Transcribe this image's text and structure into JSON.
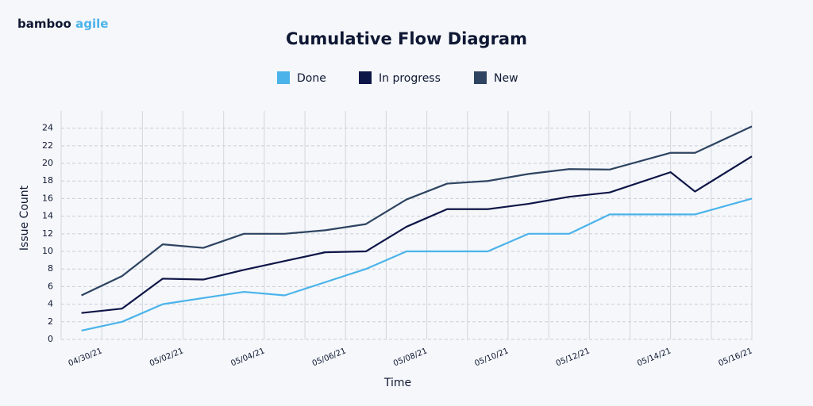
{
  "logo": [
    "bamboo",
    "agile"
  ],
  "chart_data": {
    "type": "line",
    "title": "Cumulative Flow Diagram",
    "x_label": "Time",
    "y_label": "Issue Count",
    "x": [
      -0.5,
      0.5,
      1.5,
      2.5,
      3.5,
      4.5,
      5.5,
      6.5,
      7.5,
      8.5,
      9.5,
      10.5,
      11.5,
      12.5,
      14,
      14.6,
      16
    ],
    "series": [
      {
        "name": "Done",
        "color": "#4bb3ea",
        "values": [
          1,
          2,
          4,
          4.7,
          5.4,
          5,
          6.5,
          8,
          10,
          10,
          10,
          12,
          12,
          14.2,
          14.2,
          14.2,
          16
        ]
      },
      {
        "name": "In progress",
        "color": "#0e1547",
        "values": [
          3,
          3.5,
          6.9,
          6.8,
          7.9,
          8.9,
          9.9,
          10,
          12.8,
          14.8,
          14.8,
          15.4,
          16.2,
          16.7,
          19,
          16.8,
          20.8
        ]
      },
      {
        "name": "New",
        "color": "#2e4461",
        "values": [
          5,
          7.2,
          10.8,
          10.4,
          12,
          12,
          12.4,
          13.1,
          15.9,
          17.7,
          18,
          18.8,
          19.35,
          19.3,
          21.2,
          21.2,
          24.2
        ]
      }
    ],
    "xlim": [
      -1,
      16
    ],
    "xticks": [
      {
        "value": 0,
        "label": "04/30/21"
      },
      {
        "value": 1,
        "label": null
      },
      {
        "value": 2,
        "label": "05/02/21"
      },
      {
        "value": 3,
        "label": null
      },
      {
        "value": 4,
        "label": "05/04/21"
      },
      {
        "value": 5,
        "label": null
      },
      {
        "value": 6,
        "label": "05/06/21"
      },
      {
        "value": 7,
        "label": null
      },
      {
        "value": 8,
        "label": "05/08/21"
      },
      {
        "value": 9,
        "label": null
      },
      {
        "value": 10,
        "label": "05/10/21"
      },
      {
        "value": 11,
        "label": null
      },
      {
        "value": 12,
        "label": "05/12/21"
      },
      {
        "value": 13,
        "label": null
      },
      {
        "value": 14,
        "label": "05/14/21"
      },
      {
        "value": 15,
        "label": null
      },
      {
        "value": 16,
        "label": "05/16/21"
      }
    ],
    "ylim": [
      0,
      25.5
    ],
    "yticks": [
      0,
      2,
      4,
      6,
      8,
      10,
      12,
      14,
      16,
      18,
      20,
      22,
      24
    ],
    "grid": true,
    "legend": "top"
  }
}
